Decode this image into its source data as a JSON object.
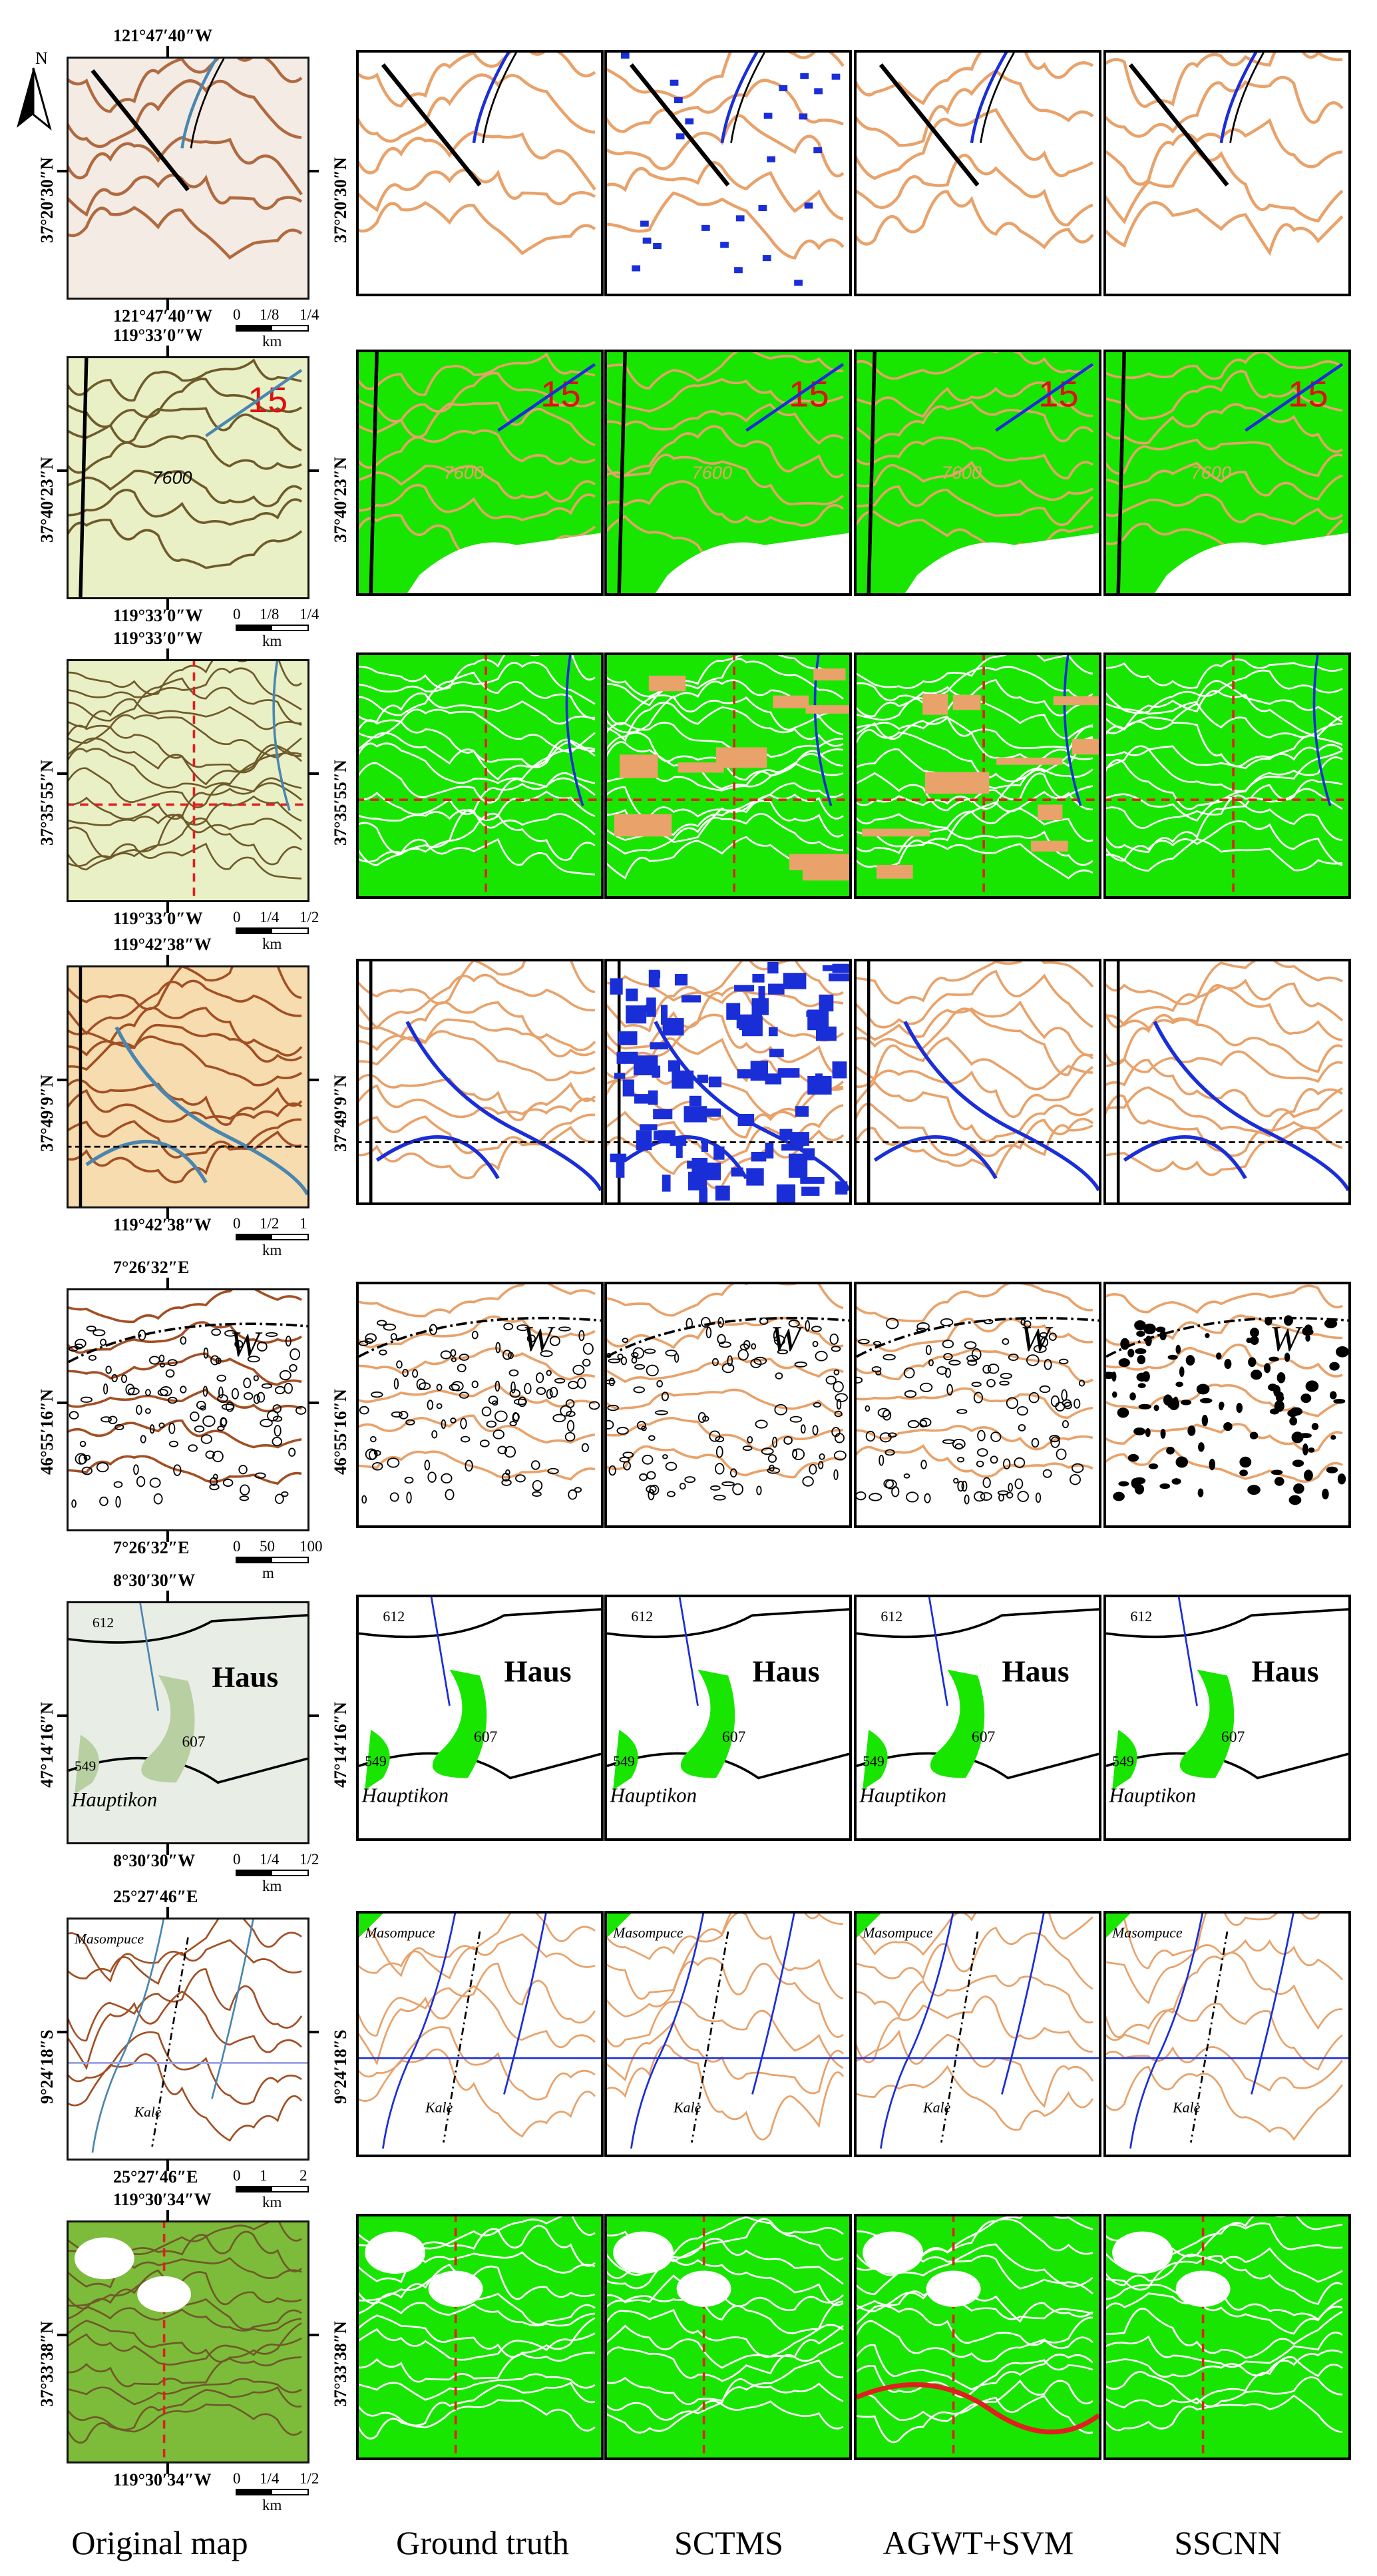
{
  "north_label": "N",
  "column_labels": [
    "Original map",
    "Ground truth",
    "SCTMS",
    "AGWT+SVM",
    "SSCNN"
  ],
  "colors": {
    "contour": "#e8a26a",
    "water": "#1a2ed8",
    "vegetation": "#19e600",
    "line": "#000000",
    "grid_red": "#e02020"
  },
  "rows": [
    {
      "top_lon": "121°47′40″W",
      "bottom_lon": "121°47′40″W",
      "left_lat": "37°20′30″N",
      "right_lat": "37°20′30″N",
      "scale": {
        "n0": "0",
        "n1": "1/8",
        "n2": "1/4",
        "unit": "km"
      },
      "theme": "plain"
    },
    {
      "top_lon": "119°33′0″W",
      "bottom_lon": "119°33′0″W",
      "left_lat": "37°40′23″N",
      "right_lat": "37°40′23″N",
      "scale": {
        "n0": "0",
        "n1": "1/8",
        "n2": "1/4",
        "unit": "km"
      },
      "theme": "green",
      "map_text": [
        "15",
        "7600"
      ]
    },
    {
      "top_lon": "119°33′0″W",
      "bottom_lon": "119°33′0″W",
      "left_lat": "37°35′55″N",
      "right_lat": "37°35′55″N",
      "scale": {
        "n0": "0",
        "n1": "1/4",
        "n2": "1/2",
        "unit": "km"
      },
      "theme": "green-dense"
    },
    {
      "top_lon": "119°42′38″W",
      "bottom_lon": "119°42′38″W",
      "left_lat": "37°49′9″N",
      "right_lat": "37°49′9″N",
      "scale": {
        "n0": "0",
        "n1": "1/2",
        "n2": "1",
        "unit": "km"
      },
      "theme": "river"
    },
    {
      "top_lon": "7°26′32″E",
      "bottom_lon": "7°26′32″E",
      "left_lat": "46°55′16″N",
      "right_lat": "46°55′16″N",
      "scale": {
        "n0": "0",
        "n1": "50",
        "n2": "100",
        "unit": "m"
      },
      "theme": "rocky",
      "map_text": [
        "W"
      ]
    },
    {
      "top_lon": "8°30′30″W",
      "bottom_lon": "8°30′30″W",
      "left_lat": "47°14′16″N",
      "right_lat": "47°14′16″N",
      "scale": {
        "n0": "0",
        "n1": "1/4",
        "n2": "1/2",
        "unit": "km"
      },
      "theme": "village",
      "map_text": [
        "Haus",
        "607",
        "612",
        "549",
        "Hauptikon"
      ]
    },
    {
      "top_lon": "25°27′46″E",
      "bottom_lon": "25°27′46″E",
      "left_lat": "9°24′18″S",
      "right_lat": "9°24′18″S",
      "scale": {
        "n0": "0",
        "n1": "1",
        "n2": "2",
        "unit": "km"
      },
      "theme": "sparse",
      "map_text": [
        "Masompuce",
        "Kale"
      ]
    },
    {
      "top_lon": "119°30′34″W",
      "bottom_lon": "119°30′34″W",
      "left_lat": "37°33′38″N",
      "right_lat": "37°33′38″N",
      "scale": {
        "n0": "0",
        "n1": "1/4",
        "n2": "1/2",
        "unit": "km"
      },
      "theme": "green-forest"
    }
  ]
}
